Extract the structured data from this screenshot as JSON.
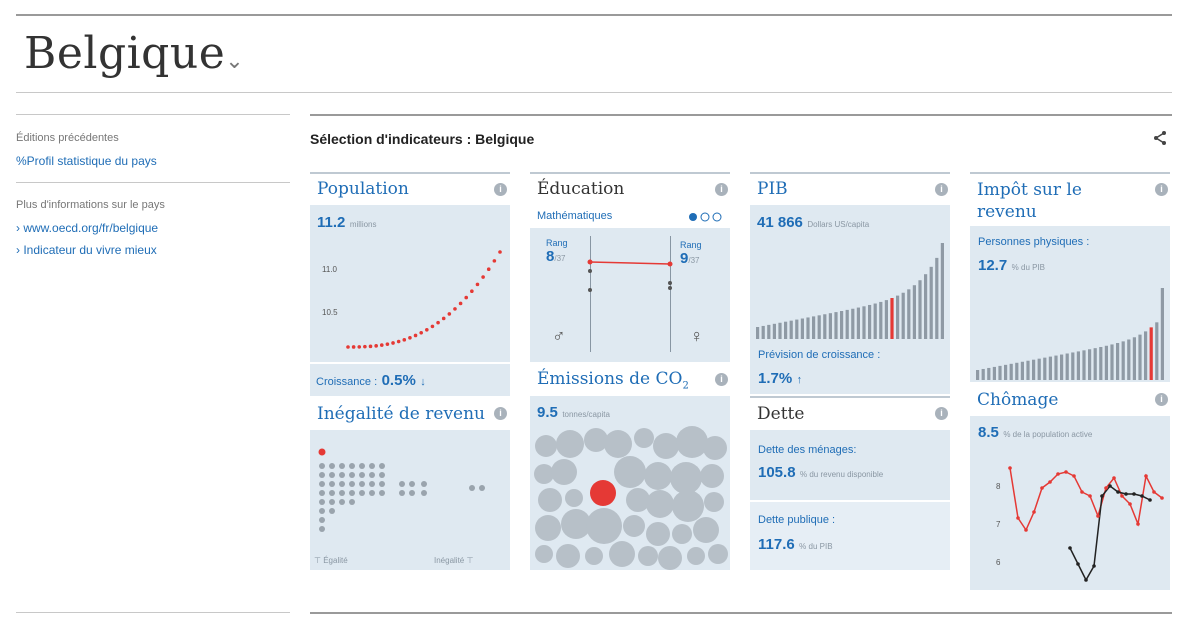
{
  "page": {
    "country": "Belgique"
  },
  "sidebar": {
    "prev_editions_label": "Éditions précédentes",
    "stat_profile_link": "Profil statistique du pays",
    "more_info_label": "Plus d'informations sur le pays",
    "links": [
      "www.oecd.org/fr/belgique",
      "Indicateur du vivre mieux"
    ]
  },
  "main": {
    "section_title": "Sélection d'indicateurs : Belgique"
  },
  "cards": {
    "population": {
      "title": "Population",
      "value": "11.2",
      "unit": "millions",
      "tick_high": "11.0",
      "tick_low": "10.5",
      "growth_label": "Croissance :",
      "growth_value": "0.5%",
      "arrow": "↓"
    },
    "education": {
      "title": "Éducation",
      "subject": "Mathématiques",
      "rank_label": "Rang",
      "left_rank": "8",
      "left_total": "/37",
      "right_rank": "9",
      "right_total": "/37"
    },
    "pib": {
      "title": "PIB",
      "value": "41 866",
      "unit": "Dollars US/capita",
      "forecast_label": "Prévision de croissance :",
      "forecast_value": "1.7%",
      "arrow": "↑"
    },
    "impot": {
      "title": "Impôt sur le revenu",
      "sub_label": "Personnes physiques :",
      "value": "12.7",
      "unit": "% du PIB"
    },
    "inegalite": {
      "title": "Inégalité de revenu",
      "left_label": "Égalité",
      "right_label": "Inégalité"
    },
    "emissions": {
      "title": "Émissions de CO",
      "subscript": "2",
      "value": "9.5",
      "unit": "tonnes/capita"
    },
    "dette": {
      "title": "Dette",
      "menages_label": "Dette des ménages:",
      "menages_value": "105.8",
      "menages_unit": "% du revenu disponible",
      "publique_label": "Dette publique :",
      "publique_value": "117.6",
      "publique_unit": "% du PIB"
    },
    "chomage": {
      "title": "Chômage",
      "value": "8.5",
      "unit": "% de la population active",
      "ticks": [
        "8",
        "7",
        "6"
      ]
    }
  },
  "colors": {
    "accent": "#1f6db6",
    "highlight": "#e53935",
    "panel": "#dfe9f1"
  }
}
